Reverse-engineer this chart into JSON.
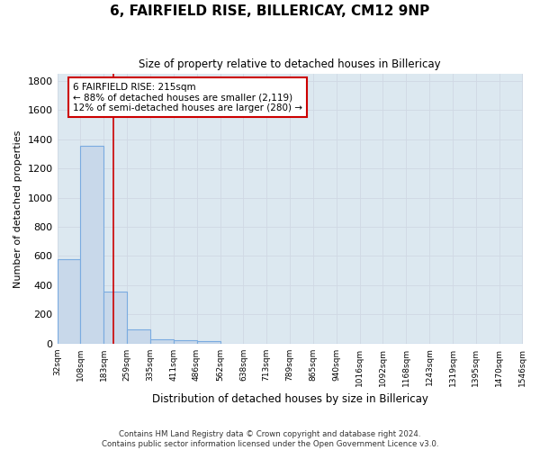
{
  "title": "6, FAIRFIELD RISE, BILLERICAY, CM12 9NP",
  "subtitle": "Size of property relative to detached houses in Billericay",
  "xlabel": "Distribution of detached houses by size in Billericay",
  "ylabel": "Number of detached properties",
  "bin_edges": [
    32,
    108,
    183,
    259,
    335,
    411,
    486,
    562,
    638,
    713,
    789,
    865,
    940,
    1016,
    1092,
    1168,
    1243,
    1319,
    1395,
    1470,
    1546
  ],
  "bin_labels": [
    "32sqm",
    "108sqm",
    "183sqm",
    "259sqm",
    "335sqm",
    "411sqm",
    "486sqm",
    "562sqm",
    "638sqm",
    "713sqm",
    "789sqm",
    "865sqm",
    "940sqm",
    "1016sqm",
    "1092sqm",
    "1168sqm",
    "1243sqm",
    "1319sqm",
    "1395sqm",
    "1470sqm",
    "1546sqm"
  ],
  "bar_heights": [
    580,
    1355,
    355,
    95,
    30,
    20,
    15,
    0,
    0,
    0,
    0,
    0,
    0,
    0,
    0,
    0,
    0,
    0,
    0,
    0
  ],
  "bar_color": "#c8d8ea",
  "bar_edge_color": "#7aabe0",
  "vline_x": 215,
  "vline_color": "#cc0000",
  "annotation_line1": "6 FAIRFIELD RISE: 215sqm",
  "annotation_line2": "← 88% of detached houses are smaller (2,119)",
  "annotation_line3": "12% of semi-detached houses are larger (280) →",
  "annotation_box_color": "#ffffff",
  "annotation_box_edge": "#cc0000",
  "ylim": [
    0,
    1850
  ],
  "yticks": [
    0,
    200,
    400,
    600,
    800,
    1000,
    1200,
    1400,
    1600,
    1800
  ],
  "grid_color": "#d0d8e4",
  "plot_bg_color": "#dce8f0",
  "fig_bg_color": "#ffffff",
  "footer_line1": "Contains HM Land Registry data © Crown copyright and database right 2024.",
  "footer_line2": "Contains public sector information licensed under the Open Government Licence v3.0."
}
